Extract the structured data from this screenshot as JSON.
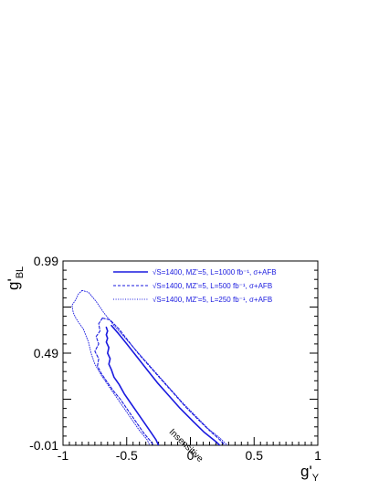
{
  "chart_data": {
    "type": "line",
    "xlabel": "g'",
    "xlabel_sub": "Y",
    "ylabel": "g'",
    "ylabel_sub": "BL",
    "xlim": [
      -1,
      1
    ],
    "ylim": [
      -0.01,
      0.99
    ],
    "x_ticks": [
      -1,
      -0.5,
      0,
      0.5,
      1
    ],
    "x_tick_labels": [
      "-1",
      "-0.5",
      "0",
      "0.5",
      "1"
    ],
    "y_ticks": [
      -0.01,
      0.49,
      0.99
    ],
    "y_tick_labels": [
      "-0.01",
      "0.49",
      "0.99"
    ],
    "grid": false,
    "legend_position": "top-right",
    "annotation": {
      "text": "Insensitive",
      "x": -0.17,
      "y": 0.06
    },
    "series": [
      {
        "name": "√S=1400, MZ'=5, L=1000 fb⁻¹, σ+AFB",
        "line_style": "solid",
        "color": "#1a1adf",
        "contours": [
          [
            [
              -0.66,
              0.63
            ],
            [
              -0.65,
              0.61
            ],
            [
              -0.66,
              0.59
            ],
            [
              -0.65,
              0.57
            ],
            [
              -0.66,
              0.55
            ],
            [
              -0.64,
              0.52
            ],
            [
              -0.65,
              0.49
            ],
            [
              -0.63,
              0.46
            ],
            [
              -0.64,
              0.43
            ],
            [
              -0.62,
              0.4
            ],
            [
              -0.6,
              0.36
            ],
            [
              -0.56,
              0.32
            ],
            [
              -0.52,
              0.27
            ],
            [
              -0.47,
              0.22
            ],
            [
              -0.42,
              0.17
            ],
            [
              -0.37,
              0.12
            ],
            [
              -0.32,
              0.07
            ],
            [
              -0.27,
              0.02
            ],
            [
              -0.25,
              -0.01
            ]
          ],
          [
            [
              -0.62,
              0.64
            ],
            [
              -0.57,
              0.6
            ],
            [
              -0.5,
              0.54
            ],
            [
              -0.42,
              0.47
            ],
            [
              -0.34,
              0.4
            ],
            [
              -0.26,
              0.33
            ],
            [
              -0.17,
              0.26
            ],
            [
              -0.08,
              0.19
            ],
            [
              0.02,
              0.12
            ],
            [
              0.11,
              0.06
            ],
            [
              0.2,
              0.01
            ],
            [
              0.23,
              -0.01
            ]
          ]
        ]
      },
      {
        "name": "√S=1400, MZ'=5, L=500 fb⁻¹, σ+AFB",
        "line_style": "dashed",
        "color": "#1a1adf",
        "contours": [
          [
            [
              -0.69,
              0.68
            ],
            [
              -0.72,
              0.65
            ],
            [
              -0.71,
              0.61
            ],
            [
              -0.74,
              0.58
            ],
            [
              -0.72,
              0.54
            ],
            [
              -0.75,
              0.5
            ],
            [
              -0.72,
              0.46
            ],
            [
              -0.73,
              0.42
            ],
            [
              -0.7,
              0.38
            ],
            [
              -0.66,
              0.34
            ],
            [
              -0.61,
              0.29
            ],
            [
              -0.55,
              0.24
            ],
            [
              -0.49,
              0.18
            ],
            [
              -0.43,
              0.12
            ],
            [
              -0.37,
              0.06
            ],
            [
              -0.31,
              0.01
            ],
            [
              -0.29,
              -0.01
            ]
          ],
          [
            [
              -0.69,
              0.68
            ],
            [
              -0.63,
              0.67
            ],
            [
              -0.56,
              0.62
            ],
            [
              -0.48,
              0.55
            ],
            [
              -0.4,
              0.48
            ],
            [
              -0.31,
              0.41
            ],
            [
              -0.22,
              0.34
            ],
            [
              -0.13,
              0.27
            ],
            [
              -0.04,
              0.2
            ],
            [
              0.06,
              0.13
            ],
            [
              0.15,
              0.07
            ],
            [
              0.23,
              0.02
            ],
            [
              0.27,
              -0.01
            ]
          ]
        ]
      },
      {
        "name": "√S=1400, MZ'=5, L=250 fb⁻¹, σ+AFB",
        "line_style": "dotted",
        "color": "#1a1adf",
        "contours": [
          [
            [
              -0.85,
              0.83
            ],
            [
              -0.88,
              0.81
            ],
            [
              -0.9,
              0.78
            ],
            [
              -0.93,
              0.75
            ],
            [
              -0.92,
              0.71
            ],
            [
              -0.9,
              0.68
            ],
            [
              -0.88,
              0.66
            ],
            [
              -0.86,
              0.64
            ],
            [
              -0.84,
              0.62
            ],
            [
              -0.8,
              0.55
            ],
            [
              -0.78,
              0.49
            ],
            [
              -0.75,
              0.43
            ],
            [
              -0.7,
              0.37
            ],
            [
              -0.64,
              0.31
            ],
            [
              -0.58,
              0.25
            ],
            [
              -0.52,
              0.19
            ],
            [
              -0.46,
              0.13
            ],
            [
              -0.4,
              0.07
            ],
            [
              -0.34,
              0.02
            ],
            [
              -0.32,
              -0.01
            ]
          ],
          [
            [
              -0.85,
              0.83
            ],
            [
              -0.8,
              0.82
            ],
            [
              -0.74,
              0.77
            ],
            [
              -0.68,
              0.71
            ],
            [
              -0.6,
              0.64
            ],
            [
              -0.51,
              0.57
            ],
            [
              -0.42,
              0.5
            ],
            [
              -0.33,
              0.43
            ],
            [
              -0.24,
              0.36
            ],
            [
              -0.15,
              0.29
            ],
            [
              -0.06,
              0.22
            ],
            [
              0.04,
              0.15
            ],
            [
              0.14,
              0.08
            ],
            [
              0.23,
              0.03
            ],
            [
              0.29,
              -0.01
            ]
          ]
        ]
      }
    ]
  }
}
